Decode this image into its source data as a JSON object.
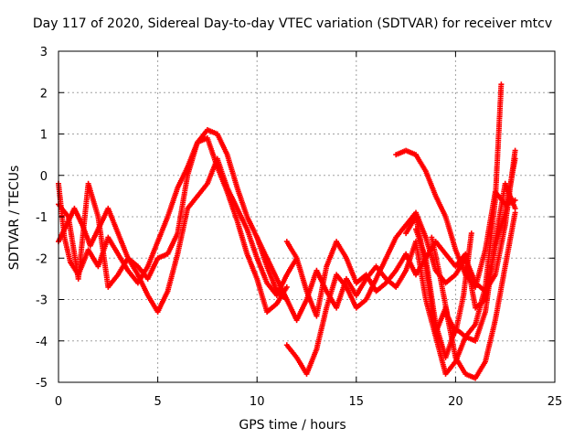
{
  "chart_data": {
    "type": "scatter",
    "title": "Day 117 of 2020, Sidereal Day-to-day VTEC variation (SDTVAR) for receiver mtcv",
    "xlabel": "GPS time / hours",
    "ylabel": "SDTVAR / TECUs",
    "xlim": [
      0,
      25
    ],
    "ylim": [
      -5,
      3
    ],
    "xticks": [
      "0",
      "5",
      "10",
      "15",
      "20",
      "25"
    ],
    "yticks": [
      "-5",
      "-4",
      "-3",
      "-2",
      "-1",
      "0",
      "1",
      "2",
      "3"
    ],
    "grid": true,
    "marker": "+",
    "color": "#ff0000",
    "series": [
      {
        "points": [
          [
            0.0,
            -0.2
          ],
          [
            0.3,
            -1.5
          ],
          [
            0.6,
            -2.1
          ],
          [
            1.0,
            -2.4
          ],
          [
            1.5,
            -1.8
          ],
          [
            2.0,
            -2.2
          ],
          [
            2.5,
            -1.5
          ],
          [
            3.0,
            -1.9
          ],
          [
            3.5,
            -2.3
          ],
          [
            4.0,
            -2.6
          ],
          [
            4.5,
            -2.2
          ],
          [
            5.0,
            -1.6
          ],
          [
            5.5,
            -1.0
          ],
          [
            6.0,
            -0.3
          ],
          [
            6.5,
            0.2
          ],
          [
            7.0,
            0.8
          ],
          [
            7.5,
            1.1
          ],
          [
            8.0,
            1.0
          ],
          [
            8.5,
            0.5
          ],
          [
            9.0,
            -0.3
          ],
          [
            9.5,
            -1.0
          ],
          [
            10.0,
            -1.5
          ],
          [
            10.5,
            -2.2
          ],
          [
            11.0,
            -2.8
          ],
          [
            11.5,
            -3.0
          ]
        ]
      },
      {
        "points": [
          [
            0.0,
            -0.7
          ],
          [
            0.5,
            -1.0
          ],
          [
            1.0,
            -2.5
          ],
          [
            1.5,
            -0.2
          ],
          [
            2.0,
            -1.0
          ],
          [
            2.5,
            -2.7
          ],
          [
            3.0,
            -2.4
          ],
          [
            3.5,
            -2.0
          ],
          [
            4.0,
            -2.4
          ],
          [
            4.5,
            -2.9
          ],
          [
            5.0,
            -3.3
          ],
          [
            5.5,
            -2.8
          ],
          [
            6.0,
            -1.9
          ],
          [
            6.5,
            -0.8
          ],
          [
            7.0,
            -0.5
          ],
          [
            7.5,
            -0.2
          ],
          [
            8.0,
            0.4
          ],
          [
            8.5,
            -0.3
          ],
          [
            9.0,
            -0.8
          ],
          [
            9.5,
            -1.3
          ],
          [
            10.0,
            -2.0
          ],
          [
            10.5,
            -2.6
          ],
          [
            11.0,
            -2.9
          ],
          [
            11.5,
            -2.4
          ],
          [
            12.0,
            -2.0
          ]
        ]
      },
      {
        "points": [
          [
            0.0,
            -1.6
          ],
          [
            0.4,
            -1.2
          ],
          [
            0.8,
            -0.8
          ],
          [
            1.2,
            -1.2
          ],
          [
            1.6,
            -1.7
          ],
          [
            2.0,
            -1.3
          ],
          [
            2.5,
            -0.8
          ],
          [
            3.0,
            -1.4
          ],
          [
            3.5,
            -2.0
          ],
          [
            4.0,
            -2.2
          ],
          [
            4.5,
            -2.5
          ],
          [
            5.0,
            -2.0
          ],
          [
            5.5,
            -1.9
          ],
          [
            6.0,
            -1.4
          ],
          [
            6.5,
            0.0
          ],
          [
            7.0,
            0.8
          ],
          [
            7.5,
            0.9
          ],
          [
            8.0,
            0.2
          ],
          [
            8.5,
            -0.4
          ],
          [
            9.0,
            -1.1
          ],
          [
            9.5,
            -1.9
          ],
          [
            10.0,
            -2.5
          ],
          [
            10.5,
            -3.3
          ],
          [
            11.0,
            -3.1
          ],
          [
            11.5,
            -2.7
          ]
        ]
      },
      {
        "points": [
          [
            11.5,
            -4.1
          ],
          [
            12.0,
            -4.4
          ],
          [
            12.5,
            -4.8
          ],
          [
            13.0,
            -4.2
          ],
          [
            13.5,
            -3.2
          ],
          [
            14.0,
            -2.4
          ],
          [
            14.5,
            -2.7
          ],
          [
            15.0,
            -3.2
          ],
          [
            15.5,
            -3.0
          ],
          [
            16.0,
            -2.5
          ],
          [
            16.5,
            -2.0
          ],
          [
            17.0,
            -1.5
          ],
          [
            17.5,
            -1.2
          ],
          [
            18.0,
            -0.9
          ],
          [
            18.5,
            -1.5
          ],
          [
            19.0,
            -2.3
          ],
          [
            19.5,
            -2.6
          ],
          [
            20.0,
            -2.4
          ],
          [
            20.5,
            -2.0
          ],
          [
            21.0,
            -2.6
          ],
          [
            21.5,
            -2.8
          ],
          [
            22.0,
            -2.4
          ],
          [
            22.5,
            -1.2
          ],
          [
            23.0,
            0.6
          ]
        ]
      },
      {
        "points": [
          [
            11.5,
            -1.6
          ],
          [
            12.0,
            -2.0
          ],
          [
            12.5,
            -2.8
          ],
          [
            13.0,
            -3.4
          ],
          [
            13.5,
            -2.2
          ],
          [
            14.0,
            -1.6
          ],
          [
            14.5,
            -2.0
          ],
          [
            15.0,
            -2.6
          ],
          [
            15.5,
            -2.4
          ],
          [
            16.0,
            -2.8
          ],
          [
            16.5,
            -2.6
          ],
          [
            17.0,
            -2.3
          ],
          [
            17.5,
            -1.9
          ],
          [
            18.0,
            -2.4
          ],
          [
            18.5,
            -2.0
          ],
          [
            19.0,
            -1.6
          ],
          [
            19.5,
            -1.9
          ],
          [
            20.0,
            -2.2
          ],
          [
            20.5,
            -1.9
          ],
          [
            21.0,
            -3.2
          ],
          [
            21.5,
            -3.0
          ],
          [
            22.0,
            -1.7
          ],
          [
            22.5,
            -0.9
          ],
          [
            23.0,
            0.4
          ]
        ]
      },
      {
        "points": [
          [
            10.0,
            -1.5
          ],
          [
            10.5,
            -2.0
          ],
          [
            11.0,
            -2.5
          ],
          [
            11.5,
            -3.0
          ],
          [
            12.0,
            -3.5
          ],
          [
            12.5,
            -3.0
          ],
          [
            13.0,
            -2.3
          ],
          [
            13.5,
            -2.8
          ],
          [
            14.0,
            -3.2
          ],
          [
            14.5,
            -2.5
          ],
          [
            15.0,
            -2.9
          ],
          [
            15.5,
            -2.5
          ],
          [
            16.0,
            -2.2
          ],
          [
            16.5,
            -2.5
          ],
          [
            17.0,
            -2.7
          ],
          [
            17.5,
            -2.3
          ],
          [
            18.0,
            -1.6
          ],
          [
            18.5,
            -3.0
          ],
          [
            19.0,
            -3.9
          ],
          [
            19.5,
            -4.8
          ],
          [
            20.0,
            -4.5
          ],
          [
            20.5,
            -3.9
          ],
          [
            21.0,
            -3.6
          ],
          [
            21.5,
            -2.7
          ],
          [
            22.0,
            -0.6
          ],
          [
            22.3,
            2.2
          ]
        ]
      },
      {
        "points": [
          [
            17.0,
            0.5
          ],
          [
            17.5,
            0.6
          ],
          [
            18.0,
            0.5
          ],
          [
            18.5,
            0.1
          ],
          [
            19.0,
            -0.5
          ],
          [
            19.5,
            -1.0
          ],
          [
            20.0,
            -1.8
          ],
          [
            20.5,
            -2.4
          ],
          [
            21.0,
            -2.7
          ],
          [
            21.5,
            -1.8
          ],
          [
            22.0,
            -0.4
          ],
          [
            22.5,
            -0.7
          ],
          [
            23.0,
            -0.6
          ]
        ]
      },
      {
        "points": [
          [
            17.5,
            -1.4
          ],
          [
            18.0,
            -1.0
          ],
          [
            18.5,
            -2.2
          ],
          [
            19.0,
            -3.8
          ],
          [
            19.5,
            -3.2
          ],
          [
            20.0,
            -4.4
          ],
          [
            20.5,
            -4.8
          ],
          [
            21.0,
            -4.9
          ],
          [
            21.5,
            -4.5
          ],
          [
            22.0,
            -3.5
          ],
          [
            22.5,
            -2.2
          ],
          [
            23.0,
            -0.9
          ]
        ]
      },
      {
        "points": [
          [
            18.0,
            -1.3
          ],
          [
            18.5,
            -2.0
          ],
          [
            19.0,
            -3.6
          ],
          [
            19.5,
            -4.4
          ],
          [
            20.0,
            -3.7
          ],
          [
            20.5,
            -3.9
          ],
          [
            21.0,
            -4.0
          ],
          [
            21.5,
            -3.3
          ],
          [
            22.0,
            -1.6
          ],
          [
            22.5,
            -0.2
          ],
          [
            23.0,
            -0.8
          ]
        ]
      },
      {
        "points": [
          [
            18.8,
            -1.5
          ],
          [
            19.2,
            -2.4
          ],
          [
            19.6,
            -3.4
          ],
          [
            20.0,
            -3.8
          ],
          [
            20.4,
            -2.9
          ],
          [
            20.8,
            -1.4
          ]
        ]
      }
    ]
  }
}
